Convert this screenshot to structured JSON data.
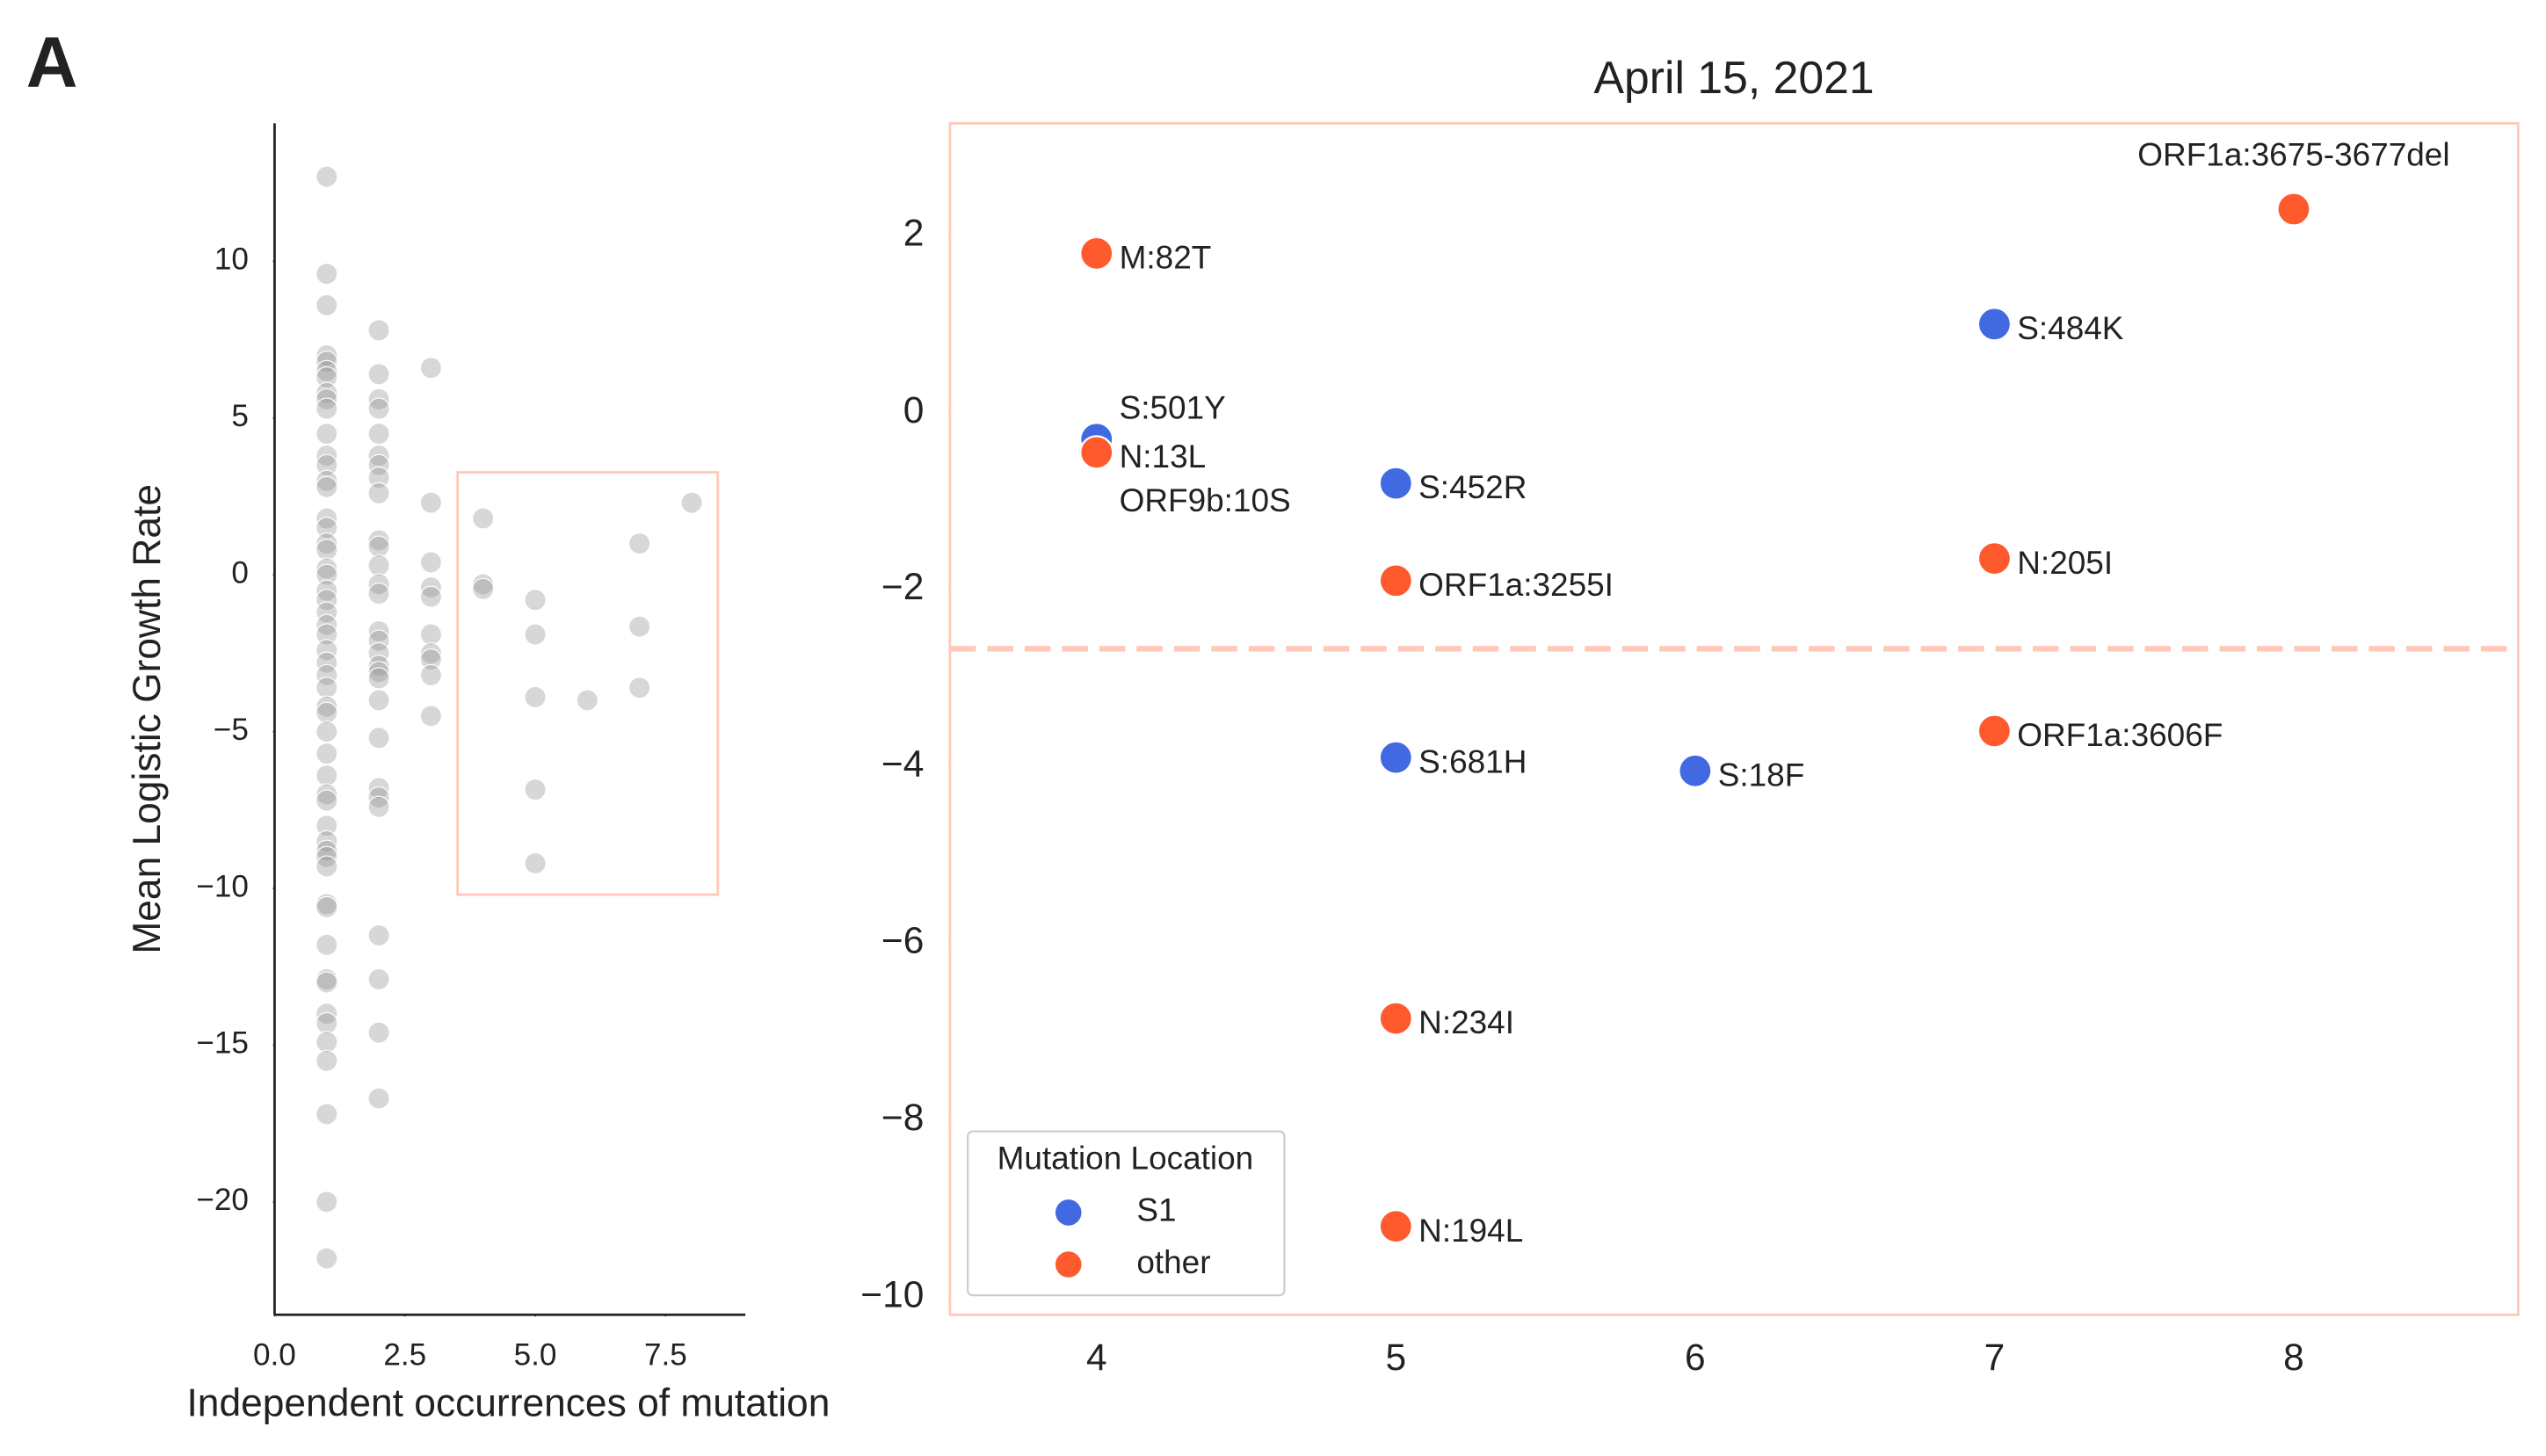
{
  "panel_label": "A",
  "chart_data": [
    {
      "type": "scatter",
      "x_label": "Independent occurrences of mutation",
      "y_label": "Mean Logistic Growth Rate",
      "x": [
        1,
        1,
        1,
        1,
        1,
        1,
        1,
        1,
        1,
        1,
        1,
        1,
        1,
        1,
        1,
        1,
        1,
        1,
        1,
        1,
        1,
        1,
        1,
        1,
        1,
        1,
        1,
        1,
        1,
        1,
        1,
        1,
        1,
        1,
        1,
        1,
        1,
        1,
        1,
        1,
        1,
        1,
        1,
        1,
        1,
        1,
        1,
        1,
        1,
        1,
        1,
        1,
        1,
        1,
        2,
        2,
        2,
        2,
        2,
        2,
        2,
        2,
        2,
        2,
        2,
        2,
        2,
        2,
        2,
        2,
        2,
        2,
        2,
        2,
        2,
        2,
        2,
        2,
        2,
        2,
        2,
        2,
        2,
        3,
        3,
        3,
        3,
        3,
        3,
        3,
        3,
        3,
        3,
        4,
        4,
        4,
        5,
        5,
        5,
        5,
        5,
        6,
        7,
        7,
        7,
        8
      ],
      "values": [
        12.7,
        9.6,
        8.6,
        7.0,
        6.8,
        6.5,
        6.3,
        5.8,
        5.6,
        5.3,
        4.5,
        3.8,
        3.5,
        3.0,
        2.8,
        1.8,
        1.5,
        1.0,
        0.8,
        0.2,
        0,
        -0.5,
        -0.8,
        -1.2,
        -1.6,
        -1.9,
        -2.4,
        -2.8,
        -3.2,
        -3.6,
        -4.2,
        -4.4,
        -5.0,
        -5.7,
        -6.4,
        -7.0,
        -7.2,
        -8.0,
        -8.5,
        -8.8,
        -9.0,
        -9.3,
        -10.5,
        -10.6,
        -11.8,
        -12.9,
        -13.0,
        -14.0,
        -14.3,
        -14.9,
        -15.5,
        -17.2,
        -20.0,
        -21.8,
        7.8,
        6.4,
        5.6,
        5.3,
        4.5,
        3.8,
        3.5,
        3.1,
        2.6,
        1.1,
        0.9,
        0.3,
        -0.3,
        -0.6,
        -1.8,
        -2.1,
        -2.5,
        -2.9,
        -3.1,
        -3.3,
        -4.0,
        -5.2,
        -6.8,
        -7.1,
        -7.4,
        -11.5,
        -12.9,
        -14.6,
        -16.7,
        6.6,
        2.3,
        0.4,
        -0.4,
        -0.7,
        -1.9,
        -2.5,
        -2.7,
        -3.2,
        -4.5,
        1.8,
        -0.3,
        -0.45,
        -0.8,
        -1.9,
        -3.9,
        -6.85,
        -9.2,
        -4.0,
        1.0,
        -1.65,
        -3.6,
        2.3
      ],
      "color": "#8c8c8c",
      "xlim": [
        0,
        9.03
      ],
      "ylim": [
        -23.6,
        14.4
      ],
      "xticks": [
        {
          "value": 0,
          "label": "0.0"
        },
        2.5,
        {
          "value": 5,
          "label": "5.0"
        },
        7.5
      ],
      "yticks": [
        10,
        5,
        0,
        {
          "value": -5,
          "label": "−5"
        },
        {
          "value": -10,
          "label": "−10"
        },
        {
          "value": -15,
          "label": "−15"
        },
        {
          "value": -20,
          "label": "−20"
        }
      ]
    },
    {
      "type": "scatter",
      "title": "April 15, 2021",
      "legend_title": "Mutation Location",
      "legend": "lower left",
      "hline": -2.67,
      "hline_color": "#ffc8b8",
      "series": [
        {
          "name": "S1",
          "color": "#4169e1",
          "x": [
            4,
            5,
            7,
            5,
            6
          ],
          "values": [
            -0.3,
            -0.8,
            1.0,
            -3.9,
            -4.05
          ],
          "labels": [
            "S:501Y",
            "S:452R",
            "S:484K",
            "S:681H",
            "S:18F"
          ]
        },
        {
          "name": "other",
          "color": "#ff5a2d",
          "x": [
            4,
            4,
            5,
            7,
            8,
            7,
            5,
            5
          ],
          "values": [
            1.8,
            -0.45,
            -1.9,
            -1.65,
            2.3,
            -3.6,
            -6.85,
            -9.2
          ],
          "labels": [
            "M:82T",
            [
              "N:13L",
              "ORF9b:10S"
            ],
            "ORF1a:3255I",
            "N:205I",
            "ORF1a:3675-3677del",
            "ORF1a:3606F",
            "N:234I",
            "N:194L"
          ]
        }
      ],
      "xlim": [
        3.51,
        8.75
      ],
      "ylim": [
        -10.2,
        3.27
      ],
      "xticks": [
        4,
        5,
        6,
        7,
        8
      ],
      "yticks": [
        2,
        0,
        {
          "value": -2,
          "label": "−2"
        },
        {
          "value": -4,
          "label": "−4"
        },
        {
          "value": -6,
          "label": "−6"
        },
        {
          "value": -8,
          "label": "−8"
        },
        {
          "value": -10,
          "label": "−10"
        }
      ]
    }
  ]
}
